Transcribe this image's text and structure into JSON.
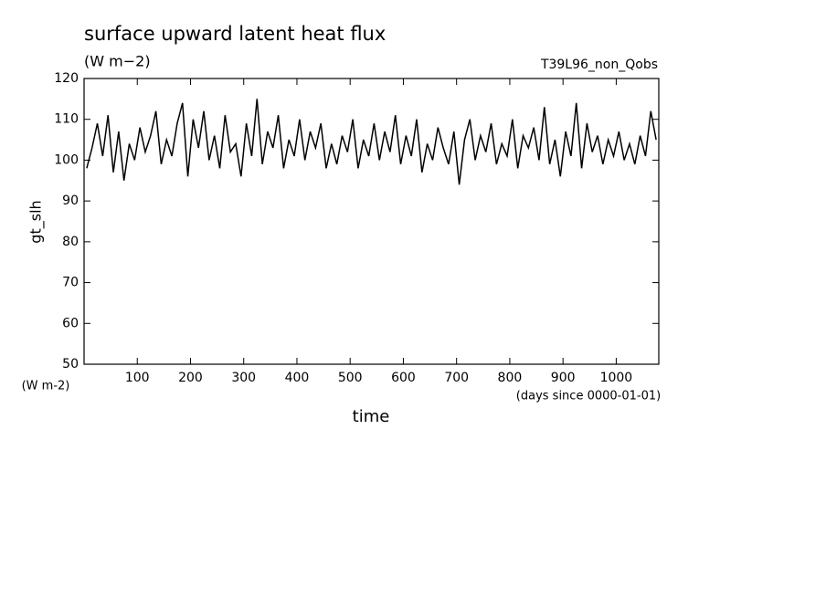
{
  "chart_data": {
    "type": "line",
    "title": "surface upward latent heat flux",
    "subtitle": "(W m−2)",
    "run_label": "T39L96_non_Qobs",
    "y_label": "gt_slh",
    "y_unit": "(W m-2)",
    "x_label": "time",
    "x_unit": "(days since 0000-01-01)",
    "color": "#000000",
    "xlim": [
      0,
      1080
    ],
    "xticks": [
      100,
      200,
      300,
      400,
      500,
      600,
      700,
      800,
      900,
      1000
    ],
    "ylim": [
      50,
      120
    ],
    "yticks": [
      50,
      60,
      70,
      80,
      90,
      100,
      110,
      120
    ],
    "x": [
      5,
      15,
      25,
      35,
      45,
      55,
      65,
      75,
      85,
      95,
      105,
      115,
      125,
      135,
      145,
      155,
      165,
      175,
      185,
      195,
      205,
      215,
      225,
      235,
      245,
      255,
      265,
      275,
      285,
      295,
      305,
      315,
      325,
      335,
      345,
      355,
      365,
      375,
      385,
      395,
      405,
      415,
      425,
      435,
      445,
      455,
      465,
      475,
      485,
      495,
      505,
      515,
      525,
      535,
      545,
      555,
      565,
      575,
      585,
      595,
      605,
      615,
      625,
      635,
      645,
      655,
      665,
      675,
      685,
      695,
      705,
      715,
      725,
      735,
      745,
      755,
      765,
      775,
      785,
      795,
      805,
      815,
      825,
      835,
      845,
      855,
      865,
      875,
      885,
      895,
      905,
      915,
      925,
      935,
      945,
      955,
      965,
      975,
      985,
      995,
      1005,
      1015,
      1025,
      1035,
      1045,
      1055,
      1065,
      1075
    ],
    "values": [
      98,
      103,
      109,
      101,
      111,
      97,
      107,
      95,
      104,
      100,
      108,
      102,
      106,
      112,
      99,
      105,
      101,
      109,
      114,
      96,
      110,
      103,
      112,
      100,
      106,
      98,
      111,
      102,
      104,
      96,
      109,
      101,
      115,
      99,
      107,
      103,
      111,
      98,
      105,
      101,
      110,
      100,
      107,
      103,
      109,
      98,
      104,
      99,
      106,
      102,
      110,
      98,
      105,
      101,
      109,
      100,
      107,
      102,
      111,
      99,
      106,
      101,
      110,
      97,
      104,
      100,
      108,
      103,
      99,
      107,
      94,
      105,
      110,
      100,
      106,
      102,
      109,
      99,
      104,
      101,
      110,
      98,
      106,
      103,
      108,
      100,
      113,
      99,
      105,
      96,
      107,
      101,
      114,
      98,
      109,
      102,
      106,
      99,
      105,
      101,
      107,
      100,
      104,
      99,
      106,
      101,
      112,
      105
    ]
  }
}
